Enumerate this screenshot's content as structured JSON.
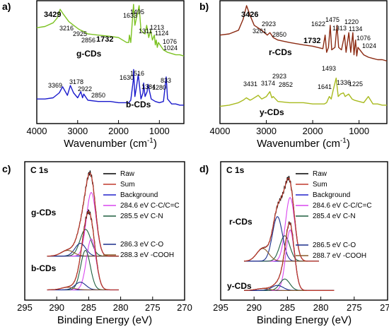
{
  "chart_data": [
    {
      "id": "a",
      "panel": "a)",
      "type": "line",
      "xlabel": "Wavenumber (cm",
      "xlabel_sup": "-1",
      "xlabel_tail": ")",
      "xlim": [
        4000,
        400
      ],
      "xticks": [
        4000,
        3000,
        2000,
        1000
      ],
      "series": [
        {
          "name": "g-CDs",
          "color": "#7cc222",
          "x": [
            4000,
            3800,
            3600,
            3500,
            3429,
            3350,
            3216,
            3100,
            2980,
            2925,
            2856,
            2750,
            2500,
            2200,
            2000,
            1900,
            1800,
            1750,
            1732,
            1700,
            1660,
            1633,
            1600,
            1560,
            1495,
            1450,
            1400,
            1350,
            1311,
            1260,
            1213,
            1170,
            1124,
            1100,
            1076,
            1050,
            1024,
            900,
            800,
            700,
            600,
            500,
            400
          ],
          "y": [
            0.78,
            0.79,
            0.82,
            0.86,
            0.93,
            0.89,
            0.83,
            0.8,
            0.77,
            0.76,
            0.75,
            0.73,
            0.72,
            0.71,
            0.7,
            0.68,
            0.66,
            0.66,
            0.72,
            0.66,
            0.84,
            0.97,
            0.8,
            0.86,
            0.96,
            0.76,
            0.74,
            0.73,
            0.8,
            0.7,
            0.76,
            0.68,
            0.72,
            0.64,
            0.68,
            0.62,
            0.66,
            0.6,
            0.58,
            0.57,
            0.56,
            0.56,
            0.55
          ]
        },
        {
          "name": "b-CDs",
          "color": "#1a1acc",
          "x": [
            4000,
            3800,
            3600,
            3450,
            3369,
            3300,
            3250,
            3178,
            3100,
            3000,
            2922,
            2880,
            2850,
            2750,
            2500,
            2200,
            2000,
            1900,
            1750,
            1700,
            1640,
            1630,
            1600,
            1560,
            1516,
            1450,
            1400,
            1384,
            1350,
            1300,
            1280,
            1200,
            1100,
            1000,
            900,
            833,
            800,
            700,
            600,
            500,
            400
          ],
          "y": [
            0.2,
            0.2,
            0.21,
            0.25,
            0.3,
            0.26,
            0.23,
            0.31,
            0.25,
            0.21,
            0.26,
            0.21,
            0.24,
            0.19,
            0.18,
            0.18,
            0.17,
            0.17,
            0.17,
            0.19,
            0.35,
            0.44,
            0.22,
            0.3,
            0.4,
            0.2,
            0.25,
            0.33,
            0.22,
            0.26,
            0.32,
            0.2,
            0.18,
            0.17,
            0.18,
            0.38,
            0.2,
            0.16,
            0.16,
            0.15,
            0.15
          ]
        }
      ],
      "annotations": [
        {
          "text": "3429",
          "bold": true
        },
        {
          "text": "3216"
        },
        {
          "text": "2925"
        },
        {
          "text": "2856"
        },
        {
          "text": "1732",
          "bold": true
        },
        {
          "text": "1633"
        },
        {
          "text": "1495"
        },
        {
          "text": "1311"
        },
        {
          "text": "1213"
        },
        {
          "text": "1124"
        },
        {
          "text": "1076"
        },
        {
          "text": "1024"
        },
        {
          "text": "3369"
        },
        {
          "text": "3178"
        },
        {
          "text": "2922"
        },
        {
          "text": "2850"
        },
        {
          "text": "1630"
        },
        {
          "text": "1516"
        },
        {
          "text": "1384"
        },
        {
          "text": "1280"
        },
        {
          "text": "833"
        }
      ],
      "series_labels": [
        "g-CDs",
        "b-CDs"
      ]
    },
    {
      "id": "b",
      "panel": "b)",
      "type": "line",
      "xlabel": "Wavenumber (cm",
      "xlabel_sup": "-1",
      "xlabel_tail": ")",
      "xlim": [
        4000,
        400
      ],
      "xticks": [
        4000,
        3000,
        2000,
        1000
      ],
      "series": [
        {
          "name": "r-CDs",
          "color": "#8b2a12",
          "x": [
            4000,
            3800,
            3600,
            3500,
            3426,
            3350,
            3261,
            3100,
            2980,
            2923,
            2850,
            2750,
            2500,
            2200,
            2000,
            1900,
            1780,
            1732,
            1700,
            1660,
            1622,
            1590,
            1520,
            1475,
            1440,
            1380,
            1313,
            1280,
            1220,
            1180,
            1134,
            1110,
            1076,
            1050,
            1024,
            900,
            800,
            700,
            600,
            500,
            400
          ],
          "y": [
            0.72,
            0.73,
            0.76,
            0.85,
            0.96,
            0.88,
            0.8,
            0.76,
            0.72,
            0.74,
            0.7,
            0.68,
            0.66,
            0.64,
            0.63,
            0.62,
            0.61,
            0.72,
            0.58,
            0.62,
            0.8,
            0.6,
            0.62,
            0.8,
            0.62,
            0.6,
            0.72,
            0.58,
            0.74,
            0.58,
            0.74,
            0.56,
            0.68,
            0.55,
            0.62,
            0.56,
            0.54,
            0.53,
            0.52,
            0.52,
            0.51
          ]
        },
        {
          "name": "y-CDs",
          "color": "#a8ba1e",
          "x": [
            4000,
            3800,
            3600,
            3500,
            3431,
            3350,
            3300,
            3174,
            3100,
            3000,
            2923,
            2880,
            2852,
            2750,
            2500,
            2200,
            2000,
            1900,
            1750,
            1700,
            1641,
            1600,
            1560,
            1493,
            1450,
            1400,
            1336,
            1300,
            1225,
            1150,
            1100,
            1000,
            900,
            800,
            700,
            600,
            500,
            400
          ],
          "y": [
            0.14,
            0.15,
            0.17,
            0.19,
            0.21,
            0.19,
            0.2,
            0.23,
            0.2,
            0.22,
            0.26,
            0.21,
            0.22,
            0.18,
            0.17,
            0.17,
            0.16,
            0.16,
            0.16,
            0.17,
            0.22,
            0.2,
            0.27,
            0.37,
            0.22,
            0.24,
            0.25,
            0.22,
            0.24,
            0.2,
            0.19,
            0.18,
            0.17,
            0.22,
            0.16,
            0.16,
            0.15,
            0.15
          ]
        }
      ],
      "annotations": [
        {
          "text": "3426",
          "bold": true
        },
        {
          "text": "3261"
        },
        {
          "text": "2923"
        },
        {
          "text": "2850"
        },
        {
          "text": "1732",
          "bold": true
        },
        {
          "text": "1622"
        },
        {
          "text": "1475"
        },
        {
          "text": "1313"
        },
        {
          "text": "1220"
        },
        {
          "text": "1134"
        },
        {
          "text": "1076"
        },
        {
          "text": "1024"
        },
        {
          "text": "3431"
        },
        {
          "text": "3174"
        },
        {
          "text": "2923"
        },
        {
          "text": "2852"
        },
        {
          "text": "1641"
        },
        {
          "text": "1493"
        },
        {
          "text": "1336"
        },
        {
          "text": "1225"
        }
      ],
      "series_labels": [
        "r-CDs",
        "y-CDs"
      ]
    },
    {
      "id": "c",
      "panel": "c)",
      "type": "line",
      "title": "C 1s",
      "xlabel": "Binding Energy (eV)",
      "xlim": [
        295,
        270
      ],
      "xticks": [
        295,
        290,
        285,
        280,
        275,
        270
      ],
      "samples": [
        {
          "name": "g-CDs",
          "peaks": [
            284.6,
            285.5,
            286.3,
            288.3
          ],
          "amps": [
            1.0,
            0.42,
            0.2,
            0.09
          ],
          "widths": [
            0.75,
            0.85,
            0.85,
            1.0
          ],
          "range": [
            291.5,
            280.3
          ],
          "offset": 0.58
        },
        {
          "name": "b-CDs",
          "peaks": [
            284.6,
            285.5,
            286.3,
            288.3
          ],
          "amps": [
            0.8,
            0.62,
            0.12,
            0.04
          ],
          "widths": [
            0.75,
            0.75,
            0.85,
            1.0
          ],
          "range": [
            291.5,
            280.3
          ],
          "offset": 0.05
        }
      ],
      "components": [
        {
          "name": "Raw",
          "color": "#000000"
        },
        {
          "name": "Sum",
          "color": "#c0392b"
        },
        {
          "name": "Background",
          "color": "#2222cc"
        },
        {
          "name": "284.6 eV C-C/C=C",
          "color": "#d946ef"
        },
        {
          "name": "285.5 eV C-N",
          "color": "#1f5f3f"
        },
        {
          "name": "286.3 eV C-O",
          "color": "#1a2e8c"
        },
        {
          "name": "288.3 eV -COOH",
          "color": "#8a5a2b"
        }
      ],
      "component_legend_split": 5
    },
    {
      "id": "d",
      "panel": "d)",
      "type": "line",
      "title": "C 1s",
      "xlabel": "Binding Energy (eV)",
      "xlim": [
        295,
        270
      ],
      "xticks": [
        295,
        290,
        285,
        280,
        275,
        270
      ],
      "samples": [
        {
          "name": "r-CDs",
          "peaks": [
            284.6,
            285.4,
            286.5,
            288.7
          ],
          "amps": [
            1.0,
            0.4,
            0.7,
            0.2
          ],
          "widths": [
            0.7,
            0.75,
            0.75,
            0.9
          ],
          "range": [
            291.5,
            280.3
          ],
          "offset": 0.5
        },
        {
          "name": "y-CDs",
          "peaks": [
            284.6,
            285.4,
            286.5,
            288.7
          ],
          "amps": [
            0.95,
            0.18,
            0.08,
            0.03
          ],
          "widths": [
            0.65,
            0.75,
            0.85,
            1.0
          ],
          "range": [
            291.5,
            278.0
          ],
          "offset": 0.04
        }
      ],
      "components": [
        {
          "name": "Raw",
          "color": "#000000"
        },
        {
          "name": "Sum",
          "color": "#c0392b"
        },
        {
          "name": "Background",
          "color": "#2222cc"
        },
        {
          "name": "284.6 eV C-C/C=C",
          "color": "#d946ef"
        },
        {
          "name": "285.4 eV C-N",
          "color": "#1f5f3f"
        },
        {
          "name": "286.5 eV C-O",
          "color": "#1a2e8c"
        },
        {
          "name": "288.7 eV -COOH",
          "color": "#8a5a2b"
        }
      ],
      "component_legend_split": 5
    }
  ]
}
